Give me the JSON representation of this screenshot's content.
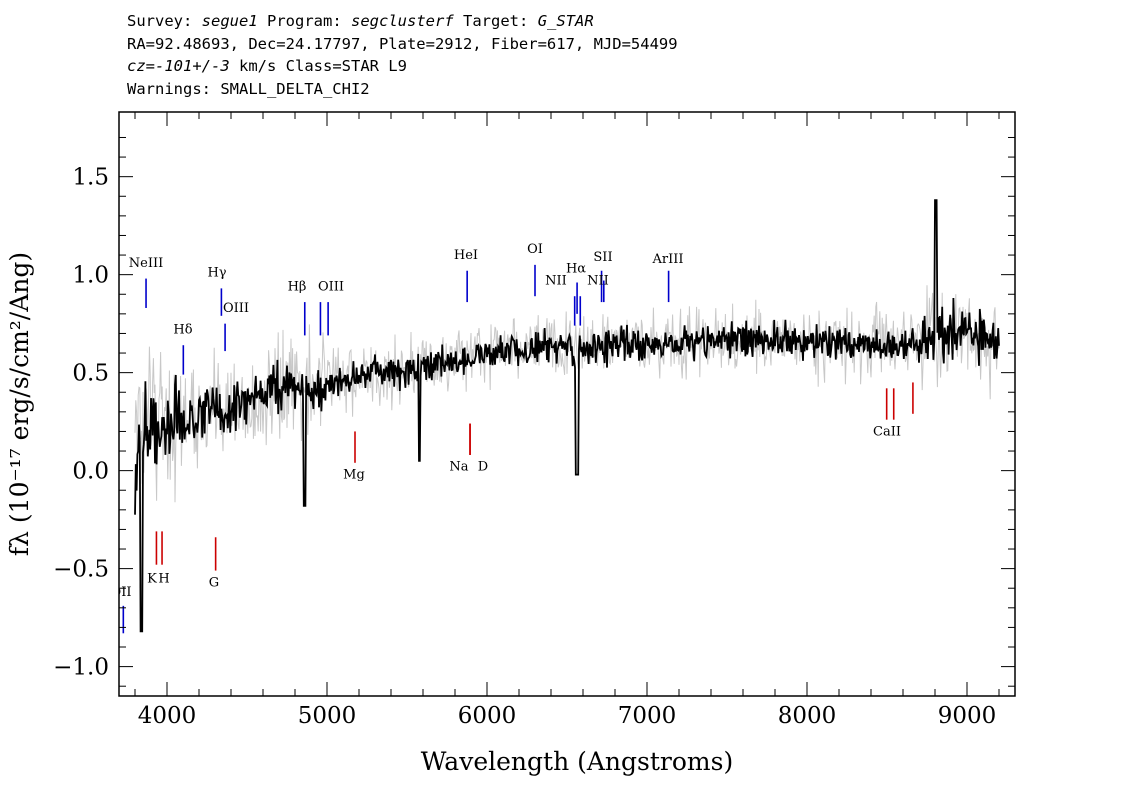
{
  "header": {
    "line1": {
      "survey_label": "Survey:",
      "survey": "segue1",
      "program_label": "Program:",
      "program": "segclusterf",
      "target_label": "Target:",
      "target": "G_STAR"
    },
    "line2": "RA=92.48693, Dec=24.17797, Plate=2912, Fiber=617, MJD=54499",
    "line3": {
      "cz_label": "cz=",
      "cz_value": "-101+/-3",
      "cz_tail": "km/s Class=STAR L9"
    },
    "line4": "Warnings: SMALL_DELTA_CHI2"
  },
  "chart_data": {
    "type": "line",
    "xlabel": "Wavelength (Angstroms)",
    "ylabel": "fλ (10⁻¹⁷ erg/s/cm²/Ang)",
    "xlim": [
      3700,
      9300
    ],
    "ylim": [
      -1.15,
      1.83
    ],
    "x_ticks": [
      4000,
      5000,
      6000,
      7000,
      8000,
      9000
    ],
    "y_ticks": [
      -1.0,
      -0.5,
      0.0,
      0.5,
      1.0,
      1.5
    ],
    "grid": false,
    "colors": {
      "flux": "#000000",
      "error": "#c8c8c8",
      "emission": "#0000cc",
      "absorption": "#cc0000"
    },
    "series": [
      {
        "role": "flux",
        "x": [
          3800,
          3850,
          3900,
          3950,
          4000,
          4100,
          4200,
          4300,
          4400,
          4500,
          4600,
          4700,
          4800,
          4900,
          5000,
          5200,
          5400,
          5600,
          5800,
          6000,
          6200,
          6400,
          6600,
          6800,
          7000,
          7200,
          7400,
          7600,
          7800,
          8000,
          8200,
          8400,
          8600,
          8800,
          8900,
          9000,
          9100,
          9200
        ],
        "y": [
          0.05,
          0.25,
          0.28,
          0.2,
          0.25,
          0.26,
          0.28,
          0.3,
          0.32,
          0.35,
          0.38,
          0.4,
          0.42,
          0.43,
          0.45,
          0.48,
          0.5,
          0.53,
          0.56,
          0.6,
          0.62,
          0.63,
          0.62,
          0.64,
          0.65,
          0.65,
          0.66,
          0.67,
          0.66,
          0.66,
          0.65,
          0.64,
          0.65,
          0.68,
          0.72,
          0.7,
          0.68,
          0.65
        ]
      }
    ],
    "emission_lines": [
      {
        "label": "OII",
        "wave": 3727,
        "y_top": -0.69,
        "y_bottom": -0.83
      },
      {
        "label": "NeIII",
        "wave": 3869,
        "y_top": 0.98,
        "y_bottom": 0.83
      },
      {
        "label": "Hδ",
        "wave": 4102,
        "y_top": 0.64,
        "y_bottom": 0.49
      },
      {
        "label": "Hγ",
        "wave": 4340,
        "y_top": 0.93,
        "y_bottom": 0.79
      },
      {
        "label": "OIII",
        "wave": 4363,
        "y_top": 0.75,
        "y_bottom": 0.61
      },
      {
        "label": "Hβ",
        "wave": 4861,
        "y_top": 0.86,
        "y_bottom": 0.69
      },
      {
        "label": "OIII",
        "wave": 4959,
        "y_top": 0.86,
        "y_bottom": 0.69
      },
      {
        "label": "",
        "wave": 5007,
        "y_top": 0.86,
        "y_bottom": 0.69
      },
      {
        "label": "HeI",
        "wave": 5876,
        "y_top": 1.02,
        "y_bottom": 0.86
      },
      {
        "label": "OI",
        "wave": 6300,
        "y_top": 1.05,
        "y_bottom": 0.89
      },
      {
        "label": "NII",
        "wave": 6548,
        "y_top": 0.89,
        "y_bottom": 0.74
      },
      {
        "label": "Hα",
        "wave": 6563,
        "y_top": 0.96,
        "y_bottom": 0.8
      },
      {
        "label": "",
        "wave": 6583,
        "y_top": 0.89,
        "y_bottom": 0.74
      },
      {
        "label": "SII",
        "wave": 6716,
        "y_top": 1.02,
        "y_bottom": 0.86
      },
      {
        "label": "NII",
        "wave": 6730,
        "y_top": 0.97,
        "y_bottom": 0.86
      },
      {
        "label": "ArIII",
        "wave": 7135,
        "y_top": 1.02,
        "y_bottom": 0.86
      }
    ],
    "absorption_lines": [
      {
        "label": "K",
        "wave": 3934,
        "y_top": -0.31,
        "y_bottom": -0.48
      },
      {
        "label": "H",
        "wave": 3969,
        "y_top": -0.31,
        "y_bottom": -0.48
      },
      {
        "label": "G",
        "wave": 4304,
        "y_top": -0.34,
        "y_bottom": -0.51
      },
      {
        "label": "Mg",
        "wave": 5175,
        "y_top": 0.2,
        "y_bottom": 0.04
      },
      {
        "label": "Na",
        "wave": 5894,
        "y_top": 0.24,
        "y_bottom": 0.08
      },
      {
        "label": "D",
        "wave": 5894,
        "y_top": 0.24,
        "y_bottom": 0.08
      },
      {
        "label": "CaII",
        "wave": 8498,
        "y_top": 0.42,
        "y_bottom": 0.26
      },
      {
        "label": "",
        "wave": 8542,
        "y_top": 0.42,
        "y_bottom": 0.26
      },
      {
        "label": "",
        "wave": 8662,
        "y_top": 0.45,
        "y_bottom": 0.29
      }
    ]
  }
}
